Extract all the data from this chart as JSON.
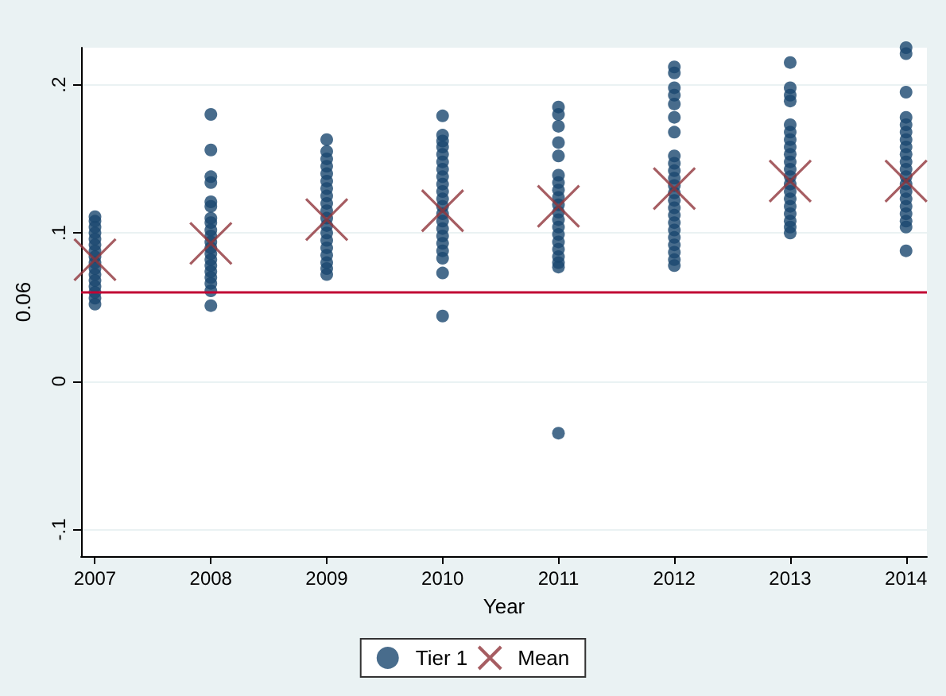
{
  "chart_data": {
    "type": "scatter",
    "xlabel": "Year",
    "ylabel": "0.06",
    "xlim": [
      2006.88,
      2014.18
    ],
    "xticks": [
      2007,
      2008,
      2009,
      2010,
      2011,
      2012,
      2013,
      2014
    ],
    "ylim": [
      -0.118,
      0.225
    ],
    "yticks": [
      {
        "value": -0.1,
        "label": "-.1"
      },
      {
        "value": 0,
        "label": "0"
      },
      {
        "value": 0.1,
        "label": ".1"
      },
      {
        "value": 0.2,
        "label": ".2"
      }
    ],
    "grid": "y",
    "legend": "bottom",
    "ref_lines": [
      {
        "axis": "y",
        "value": 0.06,
        "color": "#c10534"
      }
    ],
    "series": [
      {
        "name": "Tier 1",
        "color": "#1a476f",
        "marker": "circle",
        "x": [
          2007,
          2007,
          2007,
          2007,
          2007,
          2007,
          2007,
          2007,
          2007,
          2007,
          2007,
          2007,
          2007,
          2007,
          2007,
          2007,
          2008,
          2008,
          2008,
          2008,
          2008,
          2008,
          2008,
          2008,
          2008,
          2008,
          2008,
          2008,
          2008,
          2008,
          2008,
          2008,
          2008,
          2008,
          2008,
          2008,
          2009,
          2009,
          2009,
          2009,
          2009,
          2009,
          2009,
          2009,
          2009,
          2009,
          2009,
          2009,
          2009,
          2009,
          2009,
          2009,
          2009,
          2009,
          2009,
          2010,
          2010,
          2010,
          2010,
          2010,
          2010,
          2010,
          2010,
          2010,
          2010,
          2010,
          2010,
          2010,
          2010,
          2010,
          2010,
          2010,
          2010,
          2010,
          2010,
          2010,
          2011,
          2011,
          2011,
          2011,
          2011,
          2011,
          2011,
          2011,
          2011,
          2011,
          2011,
          2011,
          2011,
          2011,
          2011,
          2011,
          2011,
          2011,
          2011,
          2011,
          2012,
          2012,
          2012,
          2012,
          2012,
          2012,
          2012,
          2012,
          2012,
          2012,
          2012,
          2012,
          2012,
          2012,
          2012,
          2012,
          2012,
          2012,
          2012,
          2012,
          2012,
          2012,
          2012,
          2013,
          2013,
          2013,
          2013,
          2013,
          2013,
          2013,
          2013,
          2013,
          2013,
          2013,
          2013,
          2013,
          2013,
          2013,
          2013,
          2013,
          2013,
          2013,
          2013,
          2014,
          2014,
          2014,
          2014,
          2014,
          2014,
          2014,
          2014,
          2014,
          2014,
          2014,
          2014,
          2014,
          2014,
          2014,
          2014,
          2014,
          2014,
          2014,
          2014
        ],
        "values": [
          0.052,
          0.056,
          0.06,
          0.064,
          0.068,
          0.072,
          0.076,
          0.08,
          0.084,
          0.088,
          0.092,
          0.096,
          0.1,
          0.104,
          0.108,
          0.111,
          0.18,
          0.156,
          0.138,
          0.134,
          0.121,
          0.118,
          0.11,
          0.107,
          0.102,
          0.098,
          0.094,
          0.09,
          0.086,
          0.082,
          0.078,
          0.074,
          0.07,
          0.066,
          0.061,
          0.051,
          0.163,
          0.155,
          0.15,
          0.145,
          0.14,
          0.135,
          0.13,
          0.125,
          0.12,
          0.115,
          0.11,
          0.105,
          0.1,
          0.095,
          0.09,
          0.085,
          0.08,
          0.076,
          0.072,
          0.179,
          0.166,
          0.162,
          0.158,
          0.153,
          0.148,
          0.143,
          0.138,
          0.133,
          0.128,
          0.123,
          0.118,
          0.113,
          0.108,
          0.103,
          0.098,
          0.093,
          0.088,
          0.083,
          0.073,
          0.044,
          0.185,
          0.18,
          0.172,
          0.161,
          0.152,
          0.139,
          0.134,
          0.129,
          0.124,
          0.119,
          0.114,
          0.109,
          0.104,
          0.099,
          0.094,
          0.089,
          0.084,
          0.08,
          0.077,
          -0.035,
          0.212,
          0.208,
          0.198,
          0.193,
          0.187,
          0.178,
          0.168,
          0.152,
          0.147,
          0.142,
          0.137,
          0.132,
          0.127,
          0.122,
          0.117,
          0.112,
          0.107,
          0.102,
          0.097,
          0.092,
          0.087,
          0.082,
          0.078,
          0.215,
          0.198,
          0.193,
          0.189,
          0.173,
          0.168,
          0.163,
          0.158,
          0.153,
          0.148,
          0.143,
          0.138,
          0.133,
          0.128,
          0.123,
          0.118,
          0.113,
          0.108,
          0.104,
          0.1,
          0.225,
          0.221,
          0.195,
          0.178,
          0.173,
          0.168,
          0.163,
          0.158,
          0.153,
          0.148,
          0.143,
          0.138,
          0.133,
          0.128,
          0.123,
          0.118,
          0.113,
          0.108,
          0.104,
          0.088
        ]
      },
      {
        "name": "Mean",
        "color": "#90353b",
        "marker": "cross",
        "x": [
          2007,
          2008,
          2009,
          2010,
          2011,
          2012,
          2013,
          2014
        ],
        "values": [
          0.082,
          0.093,
          0.109,
          0.115,
          0.118,
          0.13,
          0.135,
          0.135
        ]
      }
    ]
  }
}
